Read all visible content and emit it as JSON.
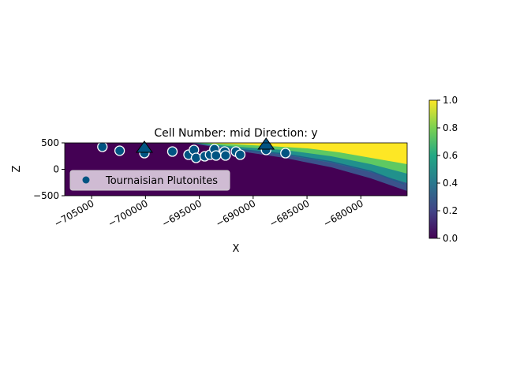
{
  "chart_data": {
    "type": "scatter",
    "title": "Cell Number: mid Direction: y",
    "xlabel": "X",
    "ylabel": "Z",
    "xlim": [
      -707500,
      -675700
    ],
    "ylim": [
      -500,
      500
    ],
    "xticks": [
      -705000,
      -700000,
      -695000,
      -690000,
      -685000,
      -680000
    ],
    "xtick_labels": [
      "−705000",
      "−700000",
      "−695000",
      "−690000",
      "−685000",
      "−680000"
    ],
    "yticks": [
      500,
      0,
      -500
    ],
    "ytick_labels": [
      "500",
      "0",
      "−500"
    ],
    "legend": {
      "placement": "center-left",
      "entries": [
        "Tournaisian Plutonites"
      ]
    },
    "series": [
      {
        "name": "Tournaisian Plutonites",
        "kind": "surface_points",
        "color": "#015482",
        "points": [
          [
            -704000,
            425
          ],
          [
            -702400,
            351
          ],
          [
            -700100,
            306
          ],
          [
            -697500,
            336
          ],
          [
            -696000,
            276
          ],
          [
            -695500,
            366
          ],
          [
            -695300,
            216
          ],
          [
            -694500,
            246
          ],
          [
            -694000,
            276
          ],
          [
            -693600,
            381
          ],
          [
            -693450,
            261
          ],
          [
            -692650,
            336
          ],
          [
            -692570,
            261
          ],
          [
            -691600,
            336
          ],
          [
            -691200,
            276
          ],
          [
            -688800,
            366
          ],
          [
            -687000,
            306
          ]
        ]
      },
      {
        "name": "orientations",
        "kind": "triangles",
        "color": "#015482",
        "points": [
          [
            -700100,
            396
          ],
          [
            -688800,
            455
          ]
        ]
      }
    ],
    "colorbar": {
      "range": [
        0.0,
        1.0
      ],
      "ticks": [
        "0.0",
        "0.2",
        "0.4",
        "0.6",
        "0.8",
        "1.0"
      ],
      "colormap": "viridis"
    }
  }
}
